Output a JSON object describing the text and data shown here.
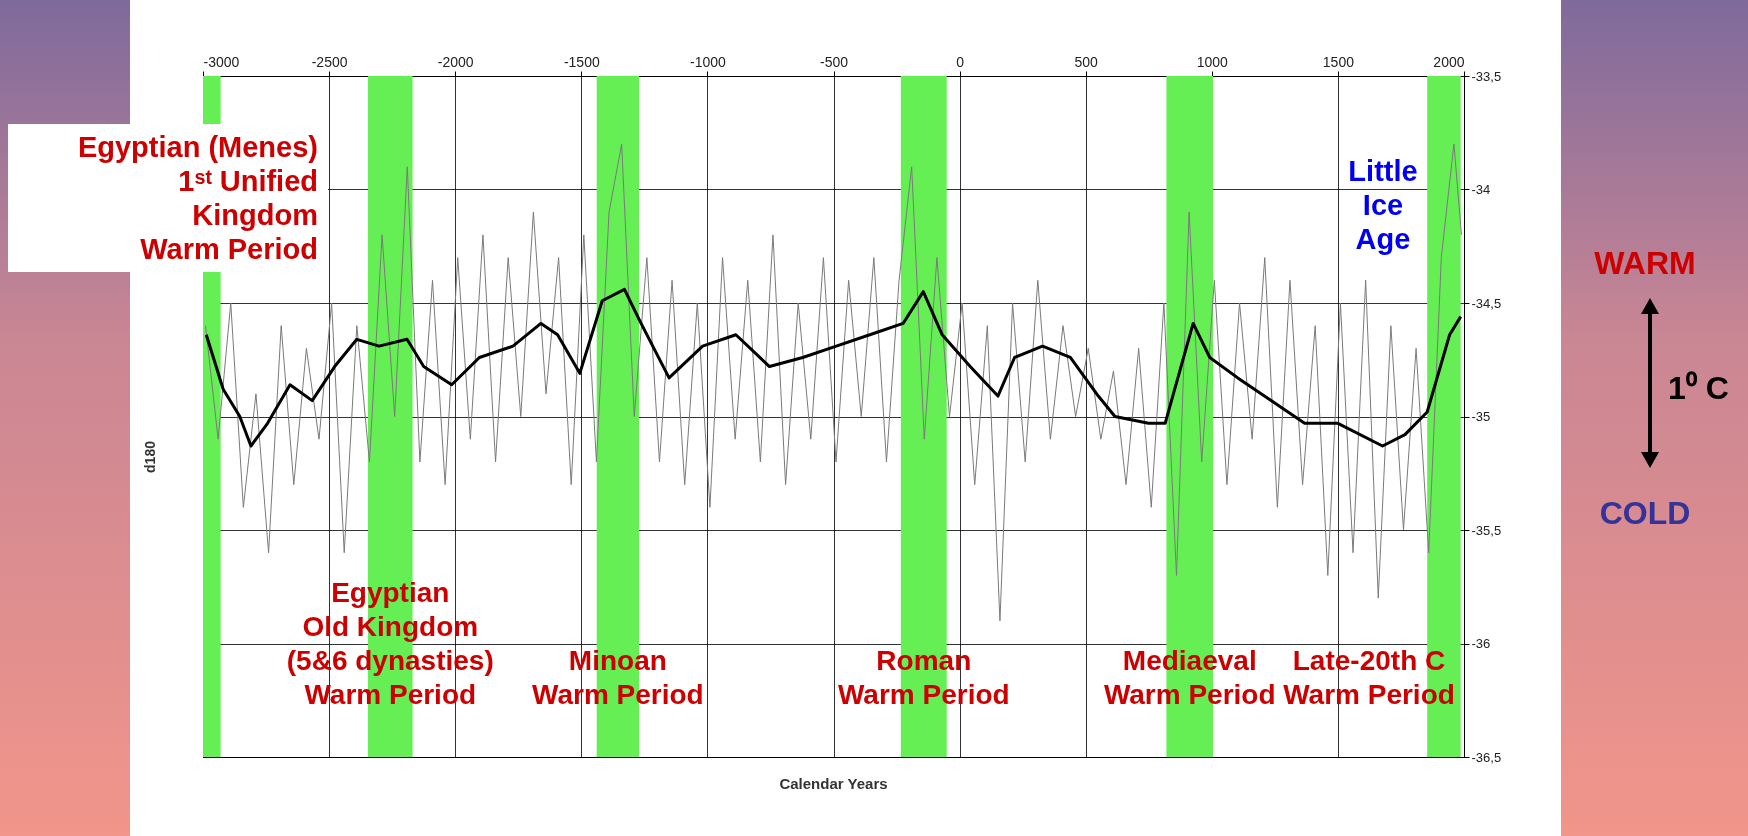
{
  "chart_data": {
    "type": "line",
    "xlabel": "Calendar Years",
    "ylabel": "d180",
    "xlim": [
      -3000,
      2000
    ],
    "xticks": [
      -3000,
      -2500,
      -2000,
      -1500,
      -1000,
      -500,
      0,
      500,
      1000,
      1500,
      2000
    ],
    "ylim": [
      -36.5,
      -33.5
    ],
    "yticks": [
      {
        "value": -36.5,
        "label": "-36,5"
      },
      {
        "value": -36,
        "label": "-36"
      },
      {
        "value": -35.5,
        "label": "-35,5"
      },
      {
        "value": -35,
        "label": "-35"
      },
      {
        "value": -34.5,
        "label": "-34,5"
      },
      {
        "value": -34,
        "label": "-34"
      },
      {
        "value": -33.5,
        "label": "-33,5"
      }
    ],
    "grid": true,
    "series": [
      {
        "color": "#7a7a7a",
        "x": [
          -2990,
          -2940,
          -2890,
          -2840,
          -2790,
          -2740,
          -2690,
          -2640,
          -2590,
          -2540,
          -2490,
          -2440,
          -2390,
          -2340,
          -2290,
          -2240,
          -2190,
          -2140,
          -2090,
          -2040,
          -1990,
          -1940,
          -1890,
          -1840,
          -1790,
          -1740,
          -1690,
          -1640,
          -1590,
          -1540,
          -1490,
          -1440,
          -1390,
          -1340,
          -1290,
          -1240,
          -1190,
          -1140,
          -1090,
          -1040,
          -990,
          -940,
          -890,
          -840,
          -790,
          -740,
          -690,
          -640,
          -590,
          -540,
          -490,
          -440,
          -390,
          -340,
          -290,
          -240,
          -190,
          -140,
          -90,
          -40,
          10,
          60,
          110,
          160,
          210,
          260,
          310,
          360,
          410,
          460,
          510,
          560,
          610,
          660,
          710,
          760,
          810,
          860,
          910,
          960,
          1010,
          1060,
          1110,
          1160,
          1210,
          1260,
          1310,
          1360,
          1410,
          1460,
          1510,
          1560,
          1610,
          1660,
          1710,
          1760,
          1810,
          1860,
          1910,
          1960,
          1990
        ],
        "values": [
          -34.6,
          -35.1,
          -34.5,
          -35.4,
          -34.9,
          -35.6,
          -34.6,
          -35.3,
          -34.7,
          -35.1,
          -34.5,
          -35.6,
          -34.6,
          -35.2,
          -34.2,
          -35.0,
          -33.9,
          -35.2,
          -34.4,
          -35.3,
          -34.3,
          -35.1,
          -34.2,
          -35.2,
          -34.3,
          -35.0,
          -34.1,
          -34.9,
          -34.3,
          -35.3,
          -34.2,
          -35.2,
          -34.1,
          -33.8,
          -35.0,
          -34.3,
          -35.2,
          -34.4,
          -35.3,
          -34.5,
          -35.4,
          -34.3,
          -35.1,
          -34.4,
          -35.2,
          -34.2,
          -35.3,
          -34.5,
          -35.1,
          -34.3,
          -35.2,
          -34.4,
          -35.0,
          -34.3,
          -35.2,
          -34.4,
          -33.9,
          -35.1,
          -34.3,
          -35.0,
          -34.5,
          -35.3,
          -34.6,
          -35.9,
          -34.5,
          -35.2,
          -34.4,
          -35.1,
          -34.6,
          -35.0,
          -34.7,
          -35.1,
          -34.8,
          -35.3,
          -34.7,
          -35.4,
          -34.5,
          -35.7,
          -34.1,
          -35.2,
          -34.4,
          -35.3,
          -34.5,
          -35.1,
          -34.3,
          -35.4,
          -34.4,
          -35.3,
          -34.6,
          -35.7,
          -34.5,
          -35.6,
          -34.4,
          -35.8,
          -34.6,
          -35.5,
          -34.7,
          -35.6,
          -34.3,
          -33.8,
          -34.2
        ]
      },
      {
        "color": "#000000",
        "x": [
          -2987,
          -2920,
          -2854,
          -2810,
          -2744,
          -2655,
          -2567,
          -2478,
          -2390,
          -2302,
          -2191,
          -2125,
          -2014,
          -1904,
          -1771,
          -1660,
          -1594,
          -1506,
          -1417,
          -1329,
          -1263,
          -1152,
          -1019,
          -887,
          -754,
          -622,
          -489,
          -356,
          -224,
          -144,
          -69,
          42,
          152,
          218,
          329,
          439,
          550,
          616,
          749,
          815,
          926,
          992,
          1103,
          1235,
          1368,
          1500,
          1677,
          1766,
          1854,
          1943,
          1987
        ],
        "values": [
          -34.64,
          -34.88,
          -35.0,
          -35.13,
          -35.03,
          -34.86,
          -34.93,
          -34.78,
          -34.66,
          -34.69,
          -34.66,
          -34.78,
          -34.86,
          -34.74,
          -34.69,
          -34.59,
          -34.64,
          -34.81,
          -34.49,
          -34.44,
          -34.59,
          -34.83,
          -34.69,
          -34.64,
          -34.78,
          -34.74,
          -34.69,
          -34.64,
          -34.59,
          -34.45,
          -34.64,
          -34.78,
          -34.91,
          -34.74,
          -34.69,
          -34.74,
          -34.91,
          -35.0,
          -35.03,
          -35.03,
          -34.59,
          -34.74,
          -34.83,
          -34.93,
          -35.03,
          -35.03,
          -35.13,
          -35.08,
          -34.98,
          -34.64,
          -34.56
        ]
      }
    ],
    "bands": [
      {
        "axis": "x",
        "from": -3000,
        "to": -2930,
        "color": "#66ee55"
      },
      {
        "axis": "x",
        "from": -2346,
        "to": -2169,
        "color": "#66ee55",
        "label": "Egyptian\nOld Kingdom\n(5&6 dynasties)\nWarm Period"
      },
      {
        "axis": "x",
        "from": -1439,
        "to": -1271,
        "color": "#66ee55",
        "label": "Minoan\nWarm Period"
      },
      {
        "axis": "x",
        "from": -233,
        "to": -51,
        "color": "#66ee55",
        "label": "Roman\nWarm Period"
      },
      {
        "axis": "x",
        "from": 820,
        "to": 1005,
        "color": "#66ee55",
        "label": "Mediaeval\nWarm Period"
      },
      {
        "axis": "x",
        "from": 1854,
        "to": 1987,
        "color": "#66ee55",
        "label": "Late-20th C\nWarm Period"
      }
    ],
    "annotations": [
      "Egyptian (Menes)\n1ˢᵗ Unified\nKingdom\nWarm Period",
      "Little\nIce\nAge",
      "WARM",
      "1⁰ C",
      "COLD"
    ]
  }
}
